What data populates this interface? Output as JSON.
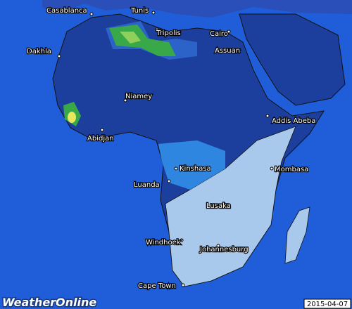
{
  "map": {
    "cities": [
      "Casablanca",
      "Tunis",
      "Tripolis",
      "Cairo",
      "Assuan",
      "Dakhla",
      "Niamey",
      "Addis Abeba",
      "Abidjan",
      "Kinshasa",
      "Mombasa",
      "Luanda",
      "Lusaka",
      "Windhoek",
      "Johannesburg",
      "Cape Town"
    ],
    "date": "2015-04-07",
    "logo": "WeatherOnline"
  }
}
